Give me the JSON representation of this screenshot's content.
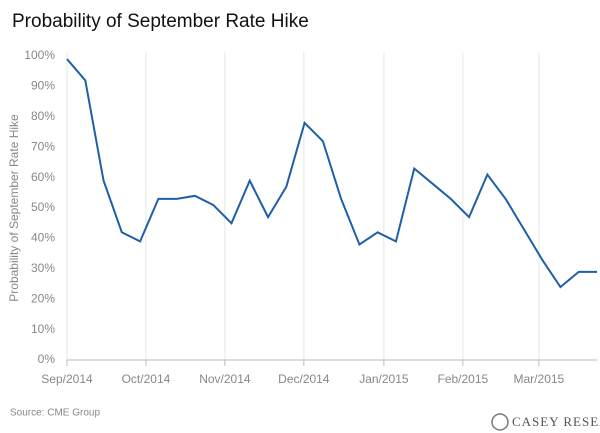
{
  "chart_data": {
    "type": "line",
    "title": "Probability of September Rate Hike",
    "ylabel": "Probability of September Rate Hike",
    "source": "Source: CME Group",
    "brand": "CASEY RESEARCH",
    "x": [
      0,
      1,
      2,
      3,
      4,
      5,
      6,
      7,
      8,
      9,
      10,
      11,
      12,
      13,
      14,
      15,
      16,
      17,
      18,
      19,
      20,
      21,
      22,
      23,
      24,
      25,
      26,
      27,
      28,
      29
    ],
    "series": [
      {
        "name": "Probability of September Rate Hike",
        "color": "#1f5fa6",
        "values": [
          99,
          92,
          59,
          42,
          39,
          53,
          53,
          54,
          51,
          45,
          59,
          47,
          57,
          78,
          72,
          53,
          38,
          42,
          39,
          63,
          58,
          53,
          47,
          61,
          53,
          43,
          33,
          24,
          29,
          29
        ]
      }
    ],
    "xlim": [
      0,
      29
    ],
    "xticks": [
      {
        "value": 0,
        "label": "Sep/2014"
      },
      {
        "value": 4.32,
        "label": "Oct/2014"
      },
      {
        "value": 8.64,
        "label": "Nov/2014"
      },
      {
        "value": 12.96,
        "label": "Dec/2014"
      },
      {
        "value": 17.34,
        "label": "Jan/2015"
      },
      {
        "value": 21.66,
        "label": "Feb/2015"
      },
      {
        "value": 25.82,
        "label": "Mar/2015"
      }
    ],
    "ylim": [
      0,
      100
    ],
    "yticks": [
      {
        "value": 0,
        "label": "0%"
      },
      {
        "value": 10,
        "label": "10%"
      },
      {
        "value": 20,
        "label": "20%"
      },
      {
        "value": 30,
        "label": "30%"
      },
      {
        "value": 40,
        "label": "40%"
      },
      {
        "value": 50,
        "label": "50%"
      },
      {
        "value": 60,
        "label": "60%"
      },
      {
        "value": 70,
        "label": "70%"
      },
      {
        "value": 80,
        "label": "80%"
      },
      {
        "value": 90,
        "label": "90%"
      },
      {
        "value": 100,
        "label": "100%"
      }
    ],
    "grid": "x"
  }
}
